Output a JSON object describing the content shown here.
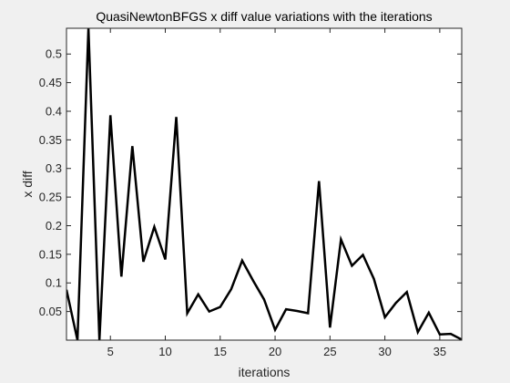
{
  "colors": {
    "figure_background": "#f0f0f0",
    "axes_background": "#ffffff",
    "axis": "#262626",
    "line": "#000000"
  },
  "chart_data": {
    "type": "line",
    "title": "QuasiNewtonBFGS x diff value variations with the iterations",
    "xlabel": "iterations",
    "ylabel": "x diff",
    "xlim": [
      1,
      37
    ],
    "ylim": [
      0,
      0.545
    ],
    "xticks": [
      5,
      10,
      15,
      20,
      25,
      30,
      35
    ],
    "yticks": [
      0.05,
      0.1,
      0.15,
      0.2,
      0.25,
      0.3,
      0.35,
      0.4,
      0.45,
      0.5
    ],
    "grid": false,
    "legend": "none",
    "series": [
      {
        "color": "#000000",
        "x": [
          1,
          2,
          3,
          4,
          5,
          6,
          7,
          8,
          9,
          10,
          11,
          12,
          13,
          14,
          15,
          16,
          17,
          18,
          19,
          20,
          21,
          22,
          23,
          24,
          25,
          26,
          27,
          28,
          29,
          30,
          31,
          32,
          33,
          34,
          35,
          36,
          37
        ],
        "values": [
          0.088,
          0.0,
          0.545,
          0.0,
          0.393,
          0.111,
          0.339,
          0.137,
          0.198,
          0.141,
          0.39,
          0.047,
          0.08,
          0.05,
          0.058,
          0.089,
          0.139,
          0.104,
          0.071,
          0.018,
          0.054,
          0.051,
          0.047,
          0.278,
          0.022,
          0.176,
          0.13,
          0.149,
          0.107,
          0.04,
          0.065,
          0.084,
          0.014,
          0.048,
          0.01,
          0.011,
          0.001
        ]
      }
    ]
  }
}
